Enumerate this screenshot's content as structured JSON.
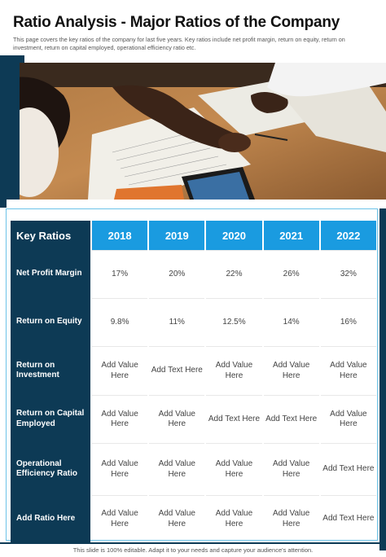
{
  "title": "Ratio Analysis - Major Ratios of the Company",
  "intro": "This page covers the key ratios of the company for last five years. Key ratios include net profit margin, return on equity, return on investment, return on capital employed, operational efficiency ratio etc.",
  "image_description": "photo-of-people-working-on-documents",
  "colors": {
    "dark_navy": "#0d3a55",
    "header_blue": "#1a9be0",
    "border_blue": "#6cc3e8"
  },
  "table": {
    "header_label": "Key Ratios",
    "years": [
      "2018",
      "2019",
      "2020",
      "2021",
      "2022"
    ],
    "rows": [
      {
        "label": "Net Profit Margin",
        "values": [
          "17%",
          "20%",
          "22%",
          "26%",
          "32%"
        ]
      },
      {
        "label": "Return on Equity",
        "values": [
          "9.8%",
          "11%",
          "12.5%",
          "14%",
          "16%"
        ]
      },
      {
        "label": "Return on Investment",
        "values": [
          "Add Value Here",
          "Add Text Here",
          "Add Value Here",
          "Add Value Here",
          "Add Value Here"
        ]
      },
      {
        "label": "Return on Capital Employed",
        "values": [
          "Add Value Here",
          "Add Value Here",
          "Add Text Here",
          "Add Text Here",
          "Add Value Here"
        ]
      },
      {
        "label": "Operational Efficiency Ratio",
        "values": [
          "Add Value Here",
          "Add Value Here",
          "Add Value Here",
          "Add Value Here",
          "Add Text Here"
        ]
      },
      {
        "label": "Add Ratio Here",
        "values": [
          "Add Value Here",
          "Add Value Here",
          "Add Value Here",
          "Add Value Here",
          "Add Text Here"
        ]
      }
    ]
  },
  "footer": "This slide is 100% editable. Adapt it to your needs and capture your audience's attention."
}
